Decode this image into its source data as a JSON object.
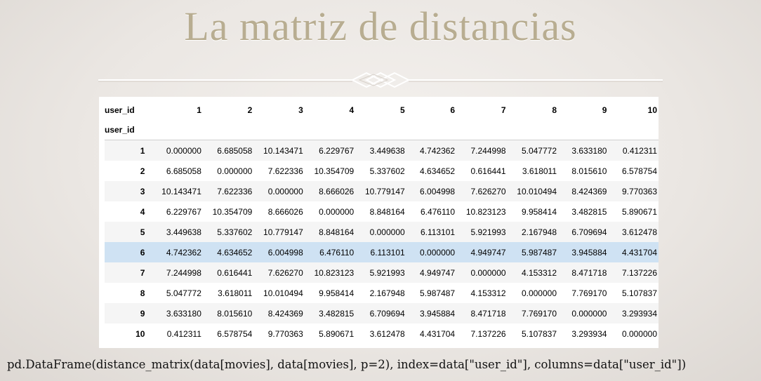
{
  "title": "La matriz de distancias",
  "table": {
    "header_label": "user_id",
    "index_label": "user_id",
    "columns": [
      "1",
      "2",
      "3",
      "4",
      "5",
      "6",
      "7",
      "8",
      "9",
      "10"
    ],
    "highlighted_row": 5,
    "rows": [
      {
        "index": "1",
        "values": [
          "0.000000",
          "6.685058",
          "10.143471",
          "6.229767",
          "3.449638",
          "4.742362",
          "7.244998",
          "5.047772",
          "3.633180",
          "0.412311"
        ]
      },
      {
        "index": "2",
        "values": [
          "6.685058",
          "0.000000",
          "7.622336",
          "10.354709",
          "5.337602",
          "4.634652",
          "0.616441",
          "3.618011",
          "8.015610",
          "6.578754"
        ]
      },
      {
        "index": "3",
        "values": [
          "10.143471",
          "7.622336",
          "0.000000",
          "8.666026",
          "10.779147",
          "6.004998",
          "7.626270",
          "10.010494",
          "8.424369",
          "9.770363"
        ]
      },
      {
        "index": "4",
        "values": [
          "6.229767",
          "10.354709",
          "8.666026",
          "0.000000",
          "8.848164",
          "6.476110",
          "10.823123",
          "9.958414",
          "3.482815",
          "5.890671"
        ]
      },
      {
        "index": "5",
        "values": [
          "3.449638",
          "5.337602",
          "10.779147",
          "8.848164",
          "0.000000",
          "6.113101",
          "5.921993",
          "2.167948",
          "6.709694",
          "3.612478"
        ]
      },
      {
        "index": "6",
        "values": [
          "4.742362",
          "4.634652",
          "6.004998",
          "6.476110",
          "6.113101",
          "0.000000",
          "4.949747",
          "5.987487",
          "3.945884",
          "4.431704"
        ]
      },
      {
        "index": "7",
        "values": [
          "7.244998",
          "0.616441",
          "7.626270",
          "10.823123",
          "5.921993",
          "4.949747",
          "0.000000",
          "4.153312",
          "8.471718",
          "7.137226"
        ]
      },
      {
        "index": "8",
        "values": [
          "5.047772",
          "3.618011",
          "10.010494",
          "9.958414",
          "2.167948",
          "5.987487",
          "4.153312",
          "0.000000",
          "7.769170",
          "5.107837"
        ]
      },
      {
        "index": "9",
        "values": [
          "3.633180",
          "8.015610",
          "8.424369",
          "3.482815",
          "6.709694",
          "3.945884",
          "8.471718",
          "7.769170",
          "0.000000",
          "3.293934"
        ]
      },
      {
        "index": "10",
        "values": [
          "0.412311",
          "6.578754",
          "9.770363",
          "5.890671",
          "3.612478",
          "4.431704",
          "7.137226",
          "5.107837",
          "3.293934",
          "0.000000"
        ]
      }
    ]
  },
  "code": "pd.DataFrame(distance_matrix(data[movies], data[movies], p=2), index=data[\"user_id\"], columns=data[\"user_id\"])"
}
